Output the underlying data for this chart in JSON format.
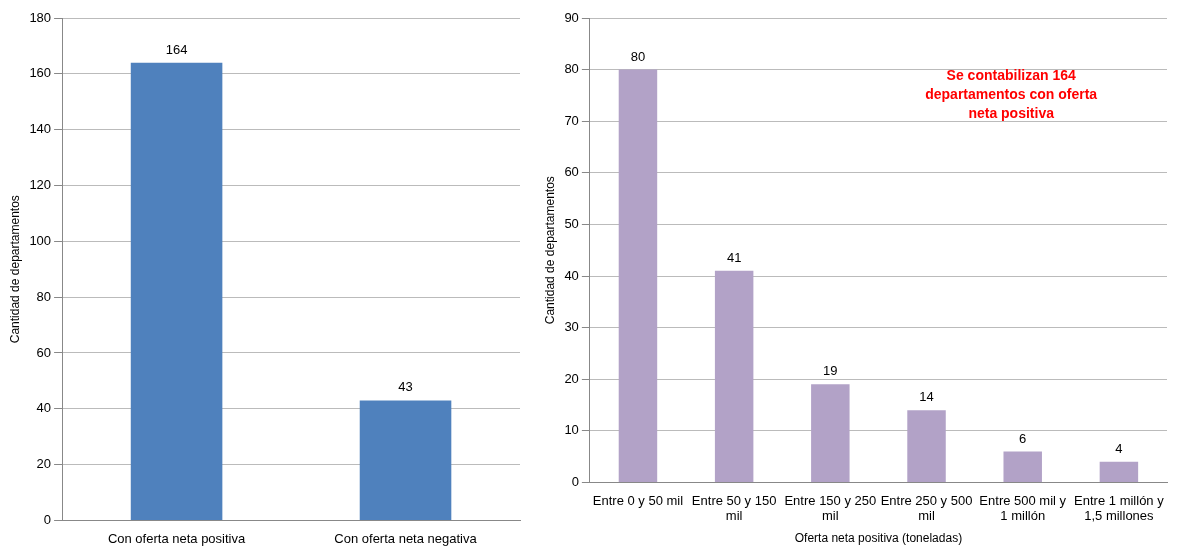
{
  "chart_data": [
    {
      "type": "bar",
      "ylabel": "Cantidad de departamentos",
      "categories": [
        "Con oferta neta positiva",
        "Con oferta neta negativa"
      ],
      "values": [
        164,
        43
      ],
      "color": "#4f81bd",
      "ylim": [
        0,
        180
      ],
      "yticks": [
        0,
        20,
        40,
        60,
        80,
        100,
        120,
        140,
        160,
        180
      ],
      "grid": "y",
      "data_labels": true,
      "legend": false
    },
    {
      "type": "bar",
      "ylabel": "Cantidad de departamentos",
      "xlabel": "Oferta neta positiva (toneladas)",
      "categories": [
        "Entre 0 y 50 mil",
        "Entre 50 y 150 mil",
        "Entre 150 y 250 mil",
        "Entre 250 y 500 mil",
        "Entre 500 mil y 1 millón",
        "Entre 1 millón y 1,5 millones"
      ],
      "values": [
        80,
        41,
        19,
        14,
        6,
        4
      ],
      "color": "#b2a2c7",
      "ylim": [
        0,
        90
      ],
      "yticks": [
        0,
        10,
        20,
        30,
        40,
        50,
        60,
        70,
        80,
        90
      ],
      "grid": "y",
      "data_labels": true,
      "legend": false,
      "annotations": [
        "Se contabilizan 164 departamentos con oferta neta positiva"
      ]
    }
  ]
}
